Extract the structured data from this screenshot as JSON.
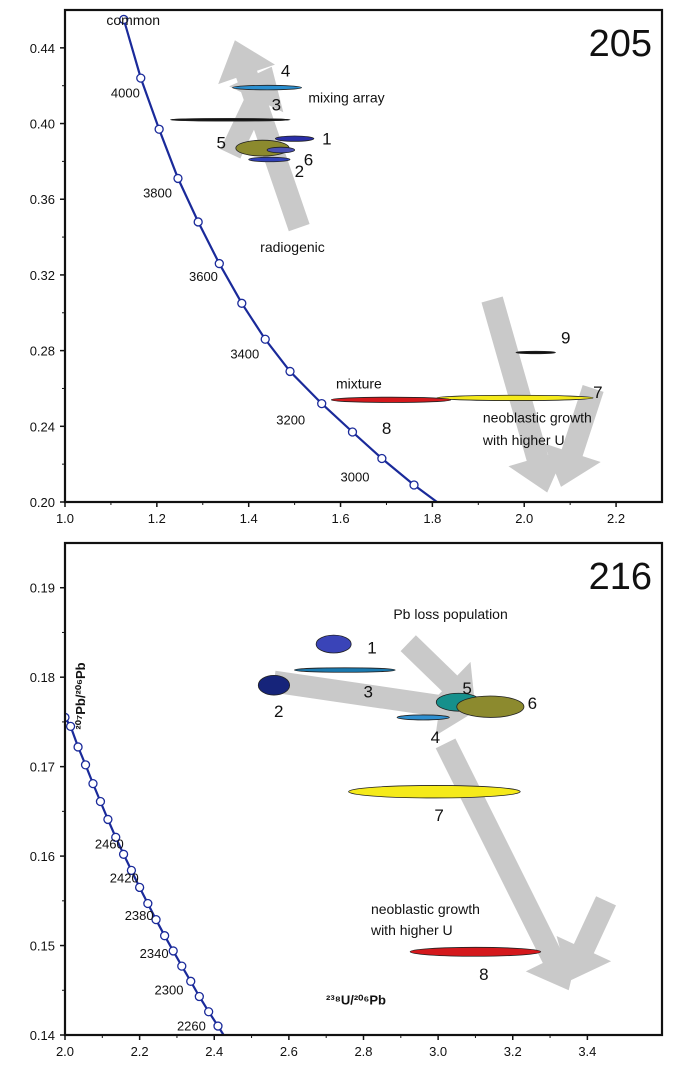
{
  "chart_data": [
    {
      "type": "scatter",
      "title": "205",
      "xlim": [
        1.0,
        2.3
      ],
      "ylim": [
        0.2,
        0.46
      ],
      "x_ticks": [
        1.0,
        1.2,
        1.4,
        1.6,
        1.8,
        2.0,
        2.2
      ],
      "x_tick_labels": [
        "1.0",
        "1.2",
        "1.4",
        "1.6",
        "1.8",
        "2.0",
        "2.2"
      ],
      "y_ticks": [
        0.2,
        0.24,
        0.28,
        0.32,
        0.36,
        0.4,
        0.44
      ],
      "y_tick_labels": [
        "0.20",
        "0.24",
        "0.28",
        "0.32",
        "0.36",
        "0.40",
        "0.44"
      ],
      "grid": false,
      "concordia": {
        "color": "#1a2a9a",
        "points": [
          {
            "x": 1.128,
            "y": 0.455
          },
          {
            "x": 1.165,
            "y": 0.424
          },
          {
            "x": 1.205,
            "y": 0.397
          },
          {
            "x": 1.246,
            "y": 0.371
          },
          {
            "x": 1.29,
            "y": 0.348
          },
          {
            "x": 1.336,
            "y": 0.326
          },
          {
            "x": 1.385,
            "y": 0.305
          },
          {
            "x": 1.436,
            "y": 0.286
          },
          {
            "x": 1.49,
            "y": 0.269
          },
          {
            "x": 1.559,
            "y": 0.252
          },
          {
            "x": 1.626,
            "y": 0.237
          },
          {
            "x": 1.69,
            "y": 0.223
          },
          {
            "x": 1.76,
            "y": 0.209
          },
          {
            "x": 1.81,
            "y": 0.2
          }
        ],
        "labels": [
          {
            "text": "4000",
            "x": 1.1,
            "y": 0.417
          },
          {
            "text": "3800",
            "x": 1.17,
            "y": 0.364
          },
          {
            "text": "3600",
            "x": 1.27,
            "y": 0.32
          },
          {
            "text": "3400",
            "x": 1.36,
            "y": 0.279
          },
          {
            "text": "3200",
            "x": 1.46,
            "y": 0.244
          },
          {
            "text": "3000",
            "x": 1.6,
            "y": 0.214
          }
        ]
      },
      "ellipses": [
        {
          "label": "1",
          "cx": 1.5,
          "cy": 0.392,
          "rx": 0.042,
          "ry": 0.0014,
          "color": "#2a2ea8",
          "label_x": 1.56,
          "label_y": 0.392
        },
        {
          "label": "2",
          "cx": 1.445,
          "cy": 0.381,
          "rx": 0.045,
          "ry": 0.0012,
          "color": "#3040b8",
          "label_x": 1.5,
          "label_y": 0.375
        },
        {
          "label": "3",
          "cx": 1.36,
          "cy": 0.402,
          "rx": 0.13,
          "ry": 0.0006,
          "color": "#1e78b8",
          "label_x": 1.45,
          "label_y": 0.41
        },
        {
          "label": "4",
          "cx": 1.44,
          "cy": 0.419,
          "rx": 0.075,
          "ry": 0.0012,
          "color": "#2a8fd0",
          "label_x": 1.47,
          "label_y": 0.428
        },
        {
          "label": "5",
          "cx": 1.43,
          "cy": 0.387,
          "rx": 0.058,
          "ry": 0.0042,
          "color": "#8c8a2e",
          "label_x": 1.33,
          "label_y": 0.39
        },
        {
          "label": "6",
          "cx": 1.47,
          "cy": 0.386,
          "rx": 0.03,
          "ry": 0.0015,
          "color": "#4a50b4",
          "label_x": 1.52,
          "label_y": 0.381
        },
        {
          "label": "7",
          "cx": 1.98,
          "cy": 0.255,
          "rx": 0.17,
          "ry": 0.0014,
          "color": "#f5ea1a",
          "label_x": 2.15,
          "label_y": 0.258
        },
        {
          "label": "8",
          "cx": 1.71,
          "cy": 0.254,
          "rx": 0.13,
          "ry": 0.0014,
          "color": "#d4181c",
          "label_x": 1.69,
          "label_y": 0.239
        },
        {
          "label": "9",
          "cx": 2.025,
          "cy": 0.279,
          "rx": 0.043,
          "ry": 0.0006,
          "color": "#111111",
          "label_x": 2.08,
          "label_y": 0.287
        },
        {
          "label": "",
          "cx": 1.36,
          "cy": 0.402,
          "rx": 0.13,
          "ry": 0.0005,
          "color": "#111111",
          "label_x": 1.36,
          "label_y": 0.402
        }
      ],
      "arrows": [
        {
          "x1": 1.51,
          "y1": 0.345,
          "x2": 1.37,
          "y2": 0.444
        },
        {
          "x1": 1.36,
          "y1": 0.384,
          "x2": 1.45,
          "y2": 0.43
        },
        {
          "x1": 1.93,
          "y1": 0.307,
          "x2": 2.05,
          "y2": 0.205
        },
        {
          "x1": 2.15,
          "y1": 0.26,
          "x2": 2.08,
          "y2": 0.208
        }
      ],
      "annotations": [
        {
          "text": "common",
          "x": 1.09,
          "y": 0.452
        },
        {
          "text": "mixing array",
          "x": 1.53,
          "y": 0.411
        },
        {
          "text": "radiogenic",
          "x": 1.425,
          "y": 0.332
        },
        {
          "text": "mixture",
          "x": 1.59,
          "y": 0.26
        },
        {
          "text": "neoblastic growth",
          "x": 1.91,
          "y": 0.242
        },
        {
          "text": "with higher U",
          "x": 1.91,
          "y": 0.23
        }
      ]
    },
    {
      "type": "scatter",
      "title": "216",
      "xlabel": "²³⁸U/²⁰⁶Pb",
      "ylabel": "²⁰⁷Pb/²⁰⁶Pb",
      "xlim": [
        2.0,
        3.6
      ],
      "ylim": [
        0.14,
        0.195
      ],
      "x_ticks": [
        2.0,
        2.2,
        2.4,
        2.6,
        2.8,
        3.0,
        3.2,
        3.4
      ],
      "x_tick_labels": [
        "2.0",
        "2.2",
        "2.4",
        "2.6",
        "2.8",
        "3.0",
        "3.2",
        "3.4"
      ],
      "y_ticks": [
        0.14,
        0.15,
        0.16,
        0.17,
        0.18,
        0.19
      ],
      "y_tick_labels": [
        "0.14",
        "0.15",
        "0.16",
        "0.17",
        "0.18",
        "0.19"
      ],
      "grid": false,
      "concordia": {
        "color": "#1a2a9a",
        "points": [
          {
            "x": 2.0,
            "y": 0.1755
          },
          {
            "x": 2.015,
            "y": 0.1745
          },
          {
            "x": 2.035,
            "y": 0.1722
          },
          {
            "x": 2.055,
            "y": 0.1702
          },
          {
            "x": 2.075,
            "y": 0.1681
          },
          {
            "x": 2.095,
            "y": 0.1661
          },
          {
            "x": 2.115,
            "y": 0.1641
          },
          {
            "x": 2.136,
            "y": 0.1621
          },
          {
            "x": 2.157,
            "y": 0.1602
          },
          {
            "x": 2.178,
            "y": 0.1584
          },
          {
            "x": 2.2,
            "y": 0.1565
          },
          {
            "x": 2.222,
            "y": 0.1547
          },
          {
            "x": 2.244,
            "y": 0.1529
          },
          {
            "x": 2.267,
            "y": 0.1511
          },
          {
            "x": 2.29,
            "y": 0.1494
          },
          {
            "x": 2.313,
            "y": 0.1477
          },
          {
            "x": 2.337,
            "y": 0.146
          },
          {
            "x": 2.36,
            "y": 0.1443
          },
          {
            "x": 2.385,
            "y": 0.1426
          },
          {
            "x": 2.41,
            "y": 0.141
          },
          {
            "x": 2.425,
            "y": 0.14
          }
        ],
        "labels": [
          {
            "text": "2460",
            "x": 2.08,
            "y": 0.1615
          },
          {
            "text": "2420",
            "x": 2.12,
            "y": 0.1577
          },
          {
            "text": "2380",
            "x": 2.16,
            "y": 0.1535
          },
          {
            "text": "2340",
            "x": 2.2,
            "y": 0.1493
          },
          {
            "text": "2300",
            "x": 2.24,
            "y": 0.1452
          },
          {
            "text": "2260",
            "x": 2.3,
            "y": 0.1412
          }
        ]
      },
      "ellipses": [
        {
          "label": "1",
          "cx": 2.72,
          "cy": 0.1837,
          "rx": 0.047,
          "ry": 0.001,
          "color": "#3a44b8",
          "label_x": 2.81,
          "label_y": 0.1833
        },
        {
          "label": "2",
          "cx": 2.56,
          "cy": 0.1791,
          "rx": 0.042,
          "ry": 0.0011,
          "color": "#16247a",
          "label_x": 2.56,
          "label_y": 0.1762
        },
        {
          "label": "3",
          "cx": 2.75,
          "cy": 0.1808,
          "rx": 0.135,
          "ry": 0.00025,
          "color": "#1a7ab0",
          "label_x": 2.8,
          "label_y": 0.1784
        },
        {
          "label": "4",
          "cx": 2.96,
          "cy": 0.1755,
          "rx": 0.07,
          "ry": 0.00028,
          "color": "#2e8fd0",
          "label_x": 2.98,
          "label_y": 0.1733
        },
        {
          "label": "5",
          "cx": 3.055,
          "cy": 0.1772,
          "rx": 0.06,
          "ry": 0.001,
          "color": "#16908c",
          "label_x": 3.065,
          "label_y": 0.1788
        },
        {
          "label": "6",
          "cx": 3.14,
          "cy": 0.1767,
          "rx": 0.09,
          "ry": 0.0012,
          "color": "#8c8a2e",
          "label_x": 3.24,
          "label_y": 0.1771
        },
        {
          "label": "7",
          "cx": 2.99,
          "cy": 0.1672,
          "rx": 0.23,
          "ry": 0.0007,
          "color": "#f5ea1a",
          "label_x": 2.99,
          "label_y": 0.1646
        },
        {
          "label": "8",
          "cx": 3.1,
          "cy": 0.1493,
          "rx": 0.175,
          "ry": 0.0005,
          "color": "#d4181c",
          "label_x": 3.11,
          "label_y": 0.1468
        }
      ],
      "arrows": [
        {
          "x1": 2.56,
          "y1": 0.1795,
          "x2": 3.1,
          "y2": 0.1762
        },
        {
          "x1": 2.92,
          "y1": 0.1838,
          "x2": 3.1,
          "y2": 0.1765
        },
        {
          "x1": 3.02,
          "y1": 0.1726,
          "x2": 3.35,
          "y2": 0.145
        },
        {
          "x1": 3.45,
          "y1": 0.155,
          "x2": 3.35,
          "y2": 0.146
        }
      ],
      "annotations": [
        {
          "text": "Pb loss population",
          "x": 2.88,
          "y": 0.1865
        },
        {
          "text": "neoblastic growth",
          "x": 2.82,
          "y": 0.1535
        },
        {
          "text": "with higher U",
          "x": 2.82,
          "y": 0.1512
        }
      ]
    }
  ]
}
